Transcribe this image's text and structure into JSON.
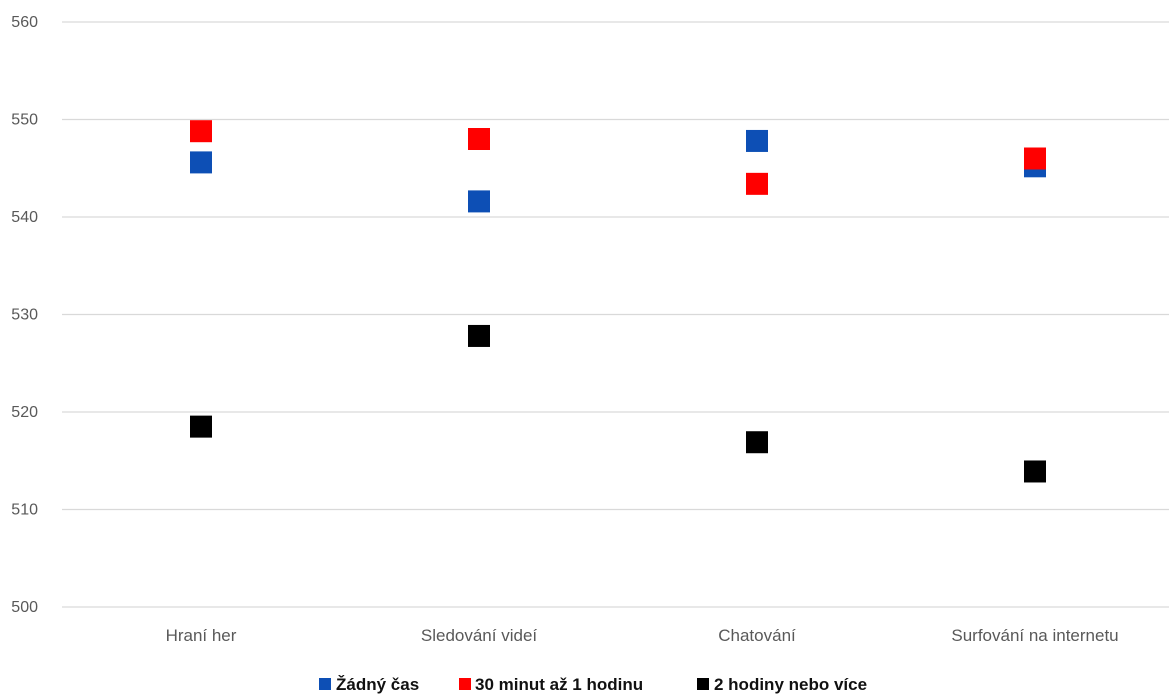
{
  "chart_data": {
    "type": "scatter",
    "title": "",
    "xlabel": "",
    "ylabel": "",
    "categories": [
      "Hraní her",
      "Sledování videí",
      "Chatování",
      "Surfování na internetu"
    ],
    "y_ticks": [
      "500",
      "510",
      "520",
      "530",
      "540",
      "550",
      "560"
    ],
    "ylim": [
      500,
      560
    ],
    "grid": true,
    "legend_position": "bottom",
    "series": [
      {
        "name": "Žádný čas",
        "color": "#0d4fb5",
        "values": [
          545.6,
          541.6,
          547.8,
          545.2
        ]
      },
      {
        "name": "30 minut až 1 hodinu",
        "color": "#ff0000",
        "values": [
          548.8,
          548.0,
          543.4,
          546.0
        ]
      },
      {
        "name": "2 hodiny nebo více",
        "color": "#000000",
        "values": [
          518.5,
          527.8,
          516.9,
          513.9
        ]
      }
    ]
  }
}
